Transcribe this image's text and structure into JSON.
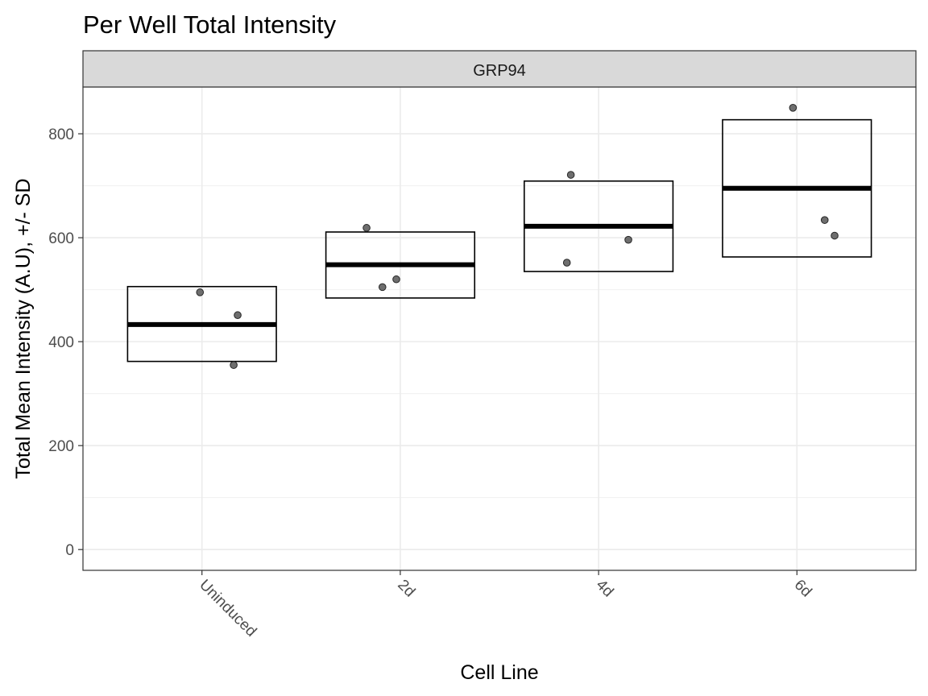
{
  "chart_data": {
    "type": "crossbar",
    "title": "Per Well Total Intensity",
    "facet": "GRP94",
    "xlabel": "Cell Line",
    "ylabel": "Total Mean Intensity (A.U), +/- SD",
    "ylim": [
      -40,
      890
    ],
    "yticks": [
      0,
      200,
      400,
      600,
      800
    ],
    "grid": true,
    "categories": [
      "Uninduced",
      "2d",
      "4d",
      "6d"
    ],
    "crossbars": [
      {
        "category": "Uninduced",
        "mean": 433,
        "lower": 362,
        "upper": 506
      },
      {
        "category": "2d",
        "mean": 548,
        "lower": 484,
        "upper": 611
      },
      {
        "category": "4d",
        "mean": 622,
        "lower": 535,
        "upper": 709
      },
      {
        "category": "6d",
        "mean": 695,
        "lower": 563,
        "upper": 827
      }
    ],
    "points": [
      {
        "category": "Uninduced",
        "offset": -0.01,
        "y": 495
      },
      {
        "category": "Uninduced",
        "offset": 0.18,
        "y": 451
      },
      {
        "category": "Uninduced",
        "offset": 0.16,
        "y": 355
      },
      {
        "category": "2d",
        "offset": -0.17,
        "y": 619
      },
      {
        "category": "2d",
        "offset": -0.09,
        "y": 505
      },
      {
        "category": "2d",
        "offset": -0.02,
        "y": 520
      },
      {
        "category": "4d",
        "offset": -0.14,
        "y": 721
      },
      {
        "category": "4d",
        "offset": -0.16,
        "y": 552
      },
      {
        "category": "4d",
        "offset": 0.15,
        "y": 596
      },
      {
        "category": "6d",
        "offset": -0.02,
        "y": 850
      },
      {
        "category": "6d",
        "offset": 0.14,
        "y": 634
      },
      {
        "category": "6d",
        "offset": 0.19,
        "y": 604
      }
    ]
  }
}
